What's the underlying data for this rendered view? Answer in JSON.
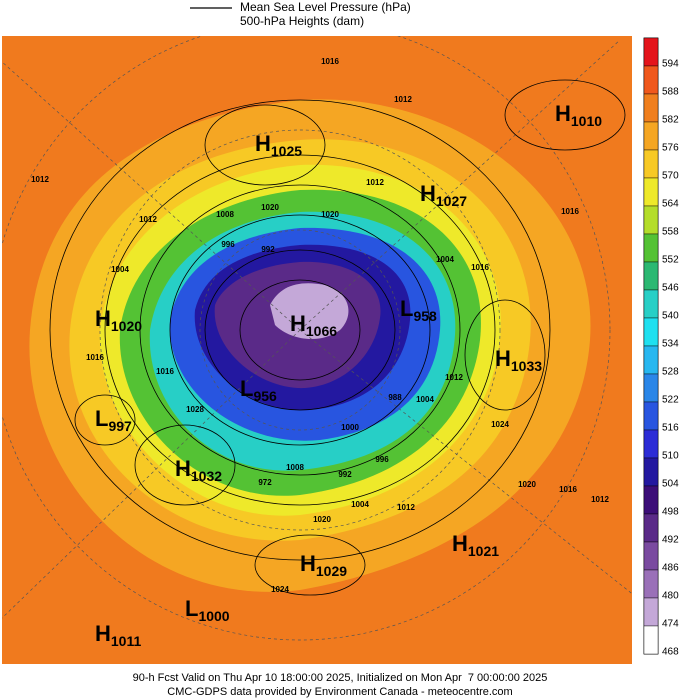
{
  "legend": {
    "items": [
      "Mean Sea Level Pressure (hPa)",
      "500-hPa Heights (dam)"
    ]
  },
  "colorbar": {
    "ticks": [
      594,
      588,
      582,
      576,
      570,
      564,
      558,
      552,
      546,
      540,
      534,
      528,
      522,
      516,
      510,
      504,
      498,
      492,
      486,
      480,
      474,
      468
    ],
    "colors": [
      "#e4141b",
      "#f0581c",
      "#f07f1e",
      "#f5a623",
      "#f7c925",
      "#eee92a",
      "#b4dd2a",
      "#54c234",
      "#2bb872",
      "#27cfc6",
      "#1fe0f0",
      "#27b7f0",
      "#2a86e8",
      "#2855e0",
      "#2c2cd6",
      "#2318a0",
      "#3c0e78",
      "#5a2a88",
      "#7a4aa0",
      "#9a70b8",
      "#c4a8d8",
      "#ffffff"
    ]
  },
  "centers": [
    {
      "type": "H",
      "value": "1010"
    },
    {
      "type": "H",
      "value": "1025"
    },
    {
      "type": "H",
      "value": "1027"
    },
    {
      "type": "H",
      "value": "1020"
    },
    {
      "type": "H",
      "value": "1066"
    },
    {
      "type": "L",
      "value": "958"
    },
    {
      "type": "H",
      "value": "1033"
    },
    {
      "type": "L",
      "value": "997"
    },
    {
      "type": "L",
      "value": "956"
    },
    {
      "type": "H",
      "value": "1032"
    },
    {
      "type": "H",
      "value": "1021"
    },
    {
      "type": "H",
      "value": "1029"
    },
    {
      "type": "L",
      "value": "1000"
    },
    {
      "type": "H",
      "value": "1011"
    }
  ],
  "contour_labels": [
    "1016",
    "1012",
    "1012",
    "1012",
    "1008",
    "1020",
    "1020",
    "1012",
    "1004",
    "1016",
    "996",
    "992",
    "1004",
    "1016",
    "1016",
    "1012",
    "1024",
    "1016",
    "1020",
    "1016",
    "1012",
    "1028",
    "1008",
    "992",
    "996",
    "1004",
    "1012",
    "1020",
    "1024",
    "988",
    "1004",
    "1000",
    "972"
  ],
  "footer": [
    "90-h Fcst Valid on Thu Apr 10 18:00:00 2025, Initialized on Mon Apr  7 00:00:00 2025",
    "CMC-GDPS data provided by Environment Canada - meteocentre.com"
  ]
}
